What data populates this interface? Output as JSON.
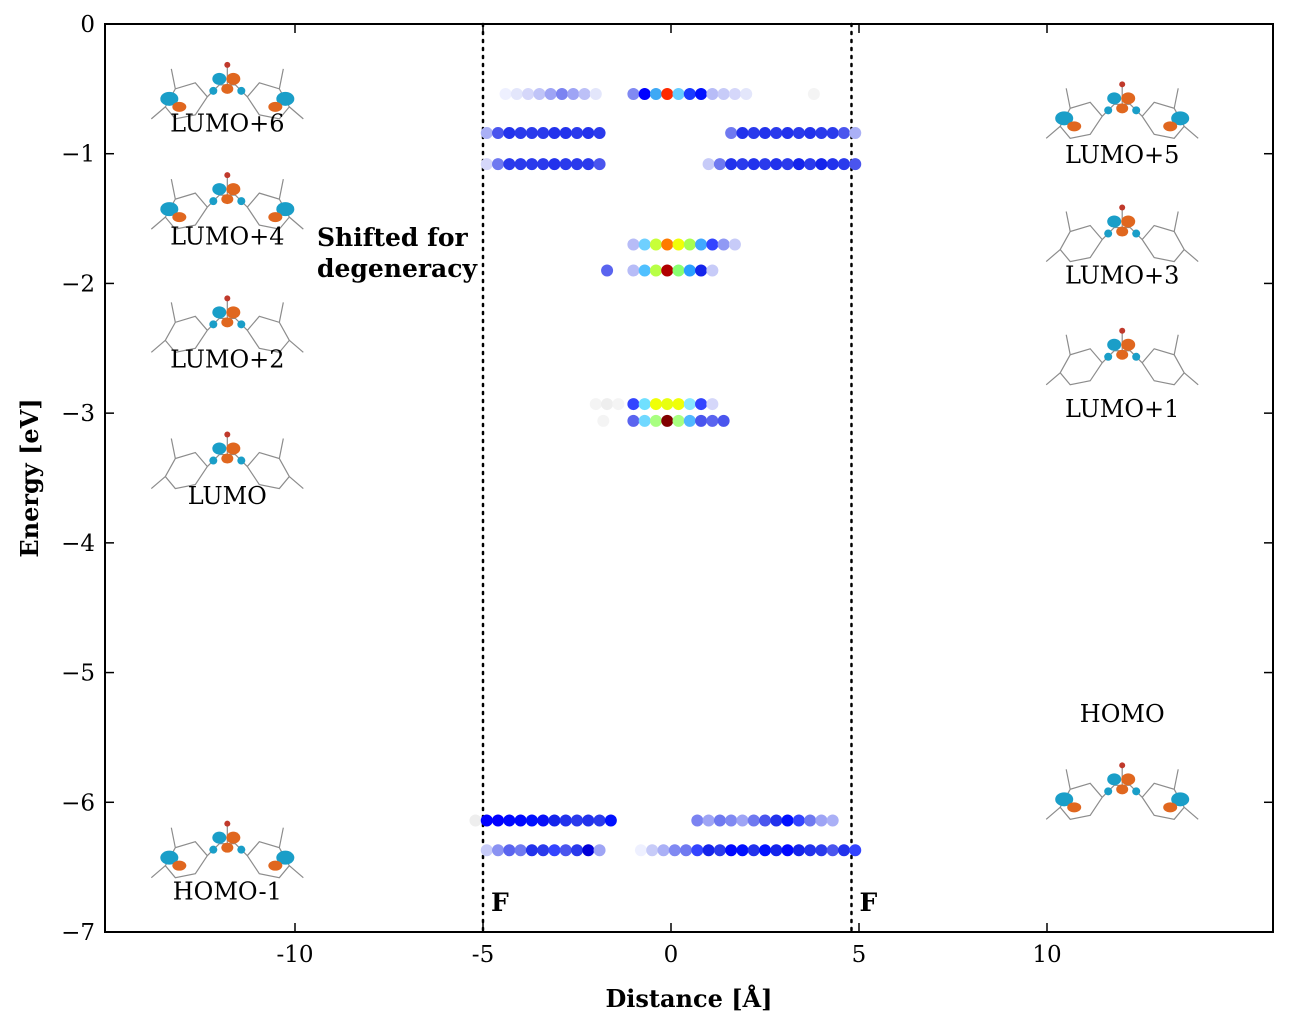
{
  "chart_data": {
    "type": "scatter",
    "xlabel": "Distance [Å]",
    "ylabel": "Energy [eV]",
    "xlim": [
      -15,
      16
    ],
    "ylim": [
      -7,
      0
    ],
    "xticks": [
      {
        "value": -10,
        "label": "-10"
      },
      {
        "value": -5,
        "label": "-5"
      },
      {
        "value": 0,
        "label": "0"
      },
      {
        "value": 5,
        "label": "5"
      },
      {
        "value": 10,
        "label": "10"
      }
    ],
    "yticks": [
      {
        "value": 0,
        "label": "0"
      },
      {
        "value": -1,
        "label": "−1"
      },
      {
        "value": -2,
        "label": "−2"
      },
      {
        "value": -3,
        "label": "−3"
      },
      {
        "value": -4,
        "label": "−4"
      },
      {
        "value": -5,
        "label": "−5"
      },
      {
        "value": -6,
        "label": "−6"
      },
      {
        "value": -7,
        "label": "−7"
      }
    ],
    "vlines": [
      {
        "x": -5.0,
        "label": "F"
      },
      {
        "x": 4.8,
        "label": "F"
      }
    ],
    "annotation": {
      "lines": [
        "Shifted for",
        "degeneracy"
      ]
    },
    "levels": [
      {
        "energy": -0.54,
        "points": [
          {
            "x": -4.4,
            "c": "#eef0ff"
          },
          {
            "x": -4.1,
            "c": "#e3e6fb"
          },
          {
            "x": -3.8,
            "c": "#d5d7fa"
          },
          {
            "x": -3.5,
            "c": "#c0c4f8"
          },
          {
            "x": -3.2,
            "c": "#9ea4f5"
          },
          {
            "x": -2.9,
            "c": "#7b83f1"
          },
          {
            "x": -2.6,
            "c": "#9ea4f5"
          },
          {
            "x": -2.3,
            "c": "#bcc0f7"
          },
          {
            "x": -2.0,
            "c": "#e3e6fb"
          },
          {
            "x": -1.0,
            "c": "#8089f2"
          },
          {
            "x": -0.7,
            "c": "#0000ff"
          },
          {
            "x": -0.4,
            "c": "#3fa9f5"
          },
          {
            "x": -0.1,
            "c": "#ff2a00"
          },
          {
            "x": 0.2,
            "c": "#66ccff"
          },
          {
            "x": 0.5,
            "c": "#1a3bff"
          },
          {
            "x": 0.8,
            "c": "#0010ff"
          },
          {
            "x": 1.1,
            "c": "#b7bcf7"
          },
          {
            "x": 1.4,
            "c": "#c7cbf8"
          },
          {
            "x": 1.7,
            "c": "#d5d7fa"
          },
          {
            "x": 2.0,
            "c": "#e3e6fb"
          },
          {
            "x": 3.8,
            "c": "#f4f4f4"
          }
        ]
      },
      {
        "energy": -0.84,
        "points": [
          {
            "x": -4.9,
            "c": "#aab0f6"
          },
          {
            "x": -4.6,
            "c": "#4a55ee"
          },
          {
            "x": -4.3,
            "c": "#2232ec"
          },
          {
            "x": -4.0,
            "c": "#2a3aec"
          },
          {
            "x": -3.7,
            "c": "#2a3aec"
          },
          {
            "x": -3.4,
            "c": "#2a3aec"
          },
          {
            "x": -3.1,
            "c": "#2232ec"
          },
          {
            "x": -2.8,
            "c": "#2232ec"
          },
          {
            "x": -2.5,
            "c": "#2a3aec"
          },
          {
            "x": -2.2,
            "c": "#2232ec"
          },
          {
            "x": -1.9,
            "c": "#2a3aec"
          },
          {
            "x": 1.6,
            "c": "#6f79f0"
          },
          {
            "x": 1.9,
            "c": "#2232ec"
          },
          {
            "x": 2.2,
            "c": "#2a3aec"
          },
          {
            "x": 2.5,
            "c": "#2232ec"
          },
          {
            "x": 2.8,
            "c": "#2a3aec"
          },
          {
            "x": 3.1,
            "c": "#2232ec"
          },
          {
            "x": 3.4,
            "c": "#2a3aec"
          },
          {
            "x": 3.7,
            "c": "#2232ec"
          },
          {
            "x": 4.0,
            "c": "#2a3aec"
          },
          {
            "x": 4.3,
            "c": "#2a3aec"
          },
          {
            "x": 4.6,
            "c": "#4a55ee"
          },
          {
            "x": 4.9,
            "c": "#aab0f6"
          }
        ]
      },
      {
        "energy": -1.08,
        "points": [
          {
            "x": -4.9,
            "c": "#d5d7fa"
          },
          {
            "x": -4.6,
            "c": "#6f79f0"
          },
          {
            "x": -4.3,
            "c": "#2a3aec"
          },
          {
            "x": -4.0,
            "c": "#2a3aec"
          },
          {
            "x": -3.7,
            "c": "#2a3aec"
          },
          {
            "x": -3.4,
            "c": "#2a3aec"
          },
          {
            "x": -3.1,
            "c": "#2232ec"
          },
          {
            "x": -2.8,
            "c": "#2a3aec"
          },
          {
            "x": -2.5,
            "c": "#2a3aec"
          },
          {
            "x": -2.2,
            "c": "#2a3aec"
          },
          {
            "x": -1.9,
            "c": "#4a55ee"
          },
          {
            "x": 1.0,
            "c": "#c7cbf8"
          },
          {
            "x": 1.3,
            "c": "#6f79f0"
          },
          {
            "x": 1.6,
            "c": "#2232ec"
          },
          {
            "x": 1.9,
            "c": "#2a3aec"
          },
          {
            "x": 2.2,
            "c": "#2232ec"
          },
          {
            "x": 2.5,
            "c": "#2a3aec"
          },
          {
            "x": 2.8,
            "c": "#2232ec"
          },
          {
            "x": 3.1,
            "c": "#2a3aec"
          },
          {
            "x": 3.4,
            "c": "#1424eb"
          },
          {
            "x": 3.7,
            "c": "#2a3aec"
          },
          {
            "x": 4.0,
            "c": "#1424eb"
          },
          {
            "x": 4.3,
            "c": "#2232ec"
          },
          {
            "x": 4.6,
            "c": "#2a3aec"
          },
          {
            "x": 4.9,
            "c": "#4a55ee"
          }
        ]
      },
      {
        "energy": -1.7,
        "points": [
          {
            "x": -1.0,
            "c": "#b7bcf7"
          },
          {
            "x": -0.7,
            "c": "#6fd0ff"
          },
          {
            "x": -0.4,
            "c": "#c8ff38"
          },
          {
            "x": -0.1,
            "c": "#ff7a00"
          },
          {
            "x": 0.2,
            "c": "#f0ff08"
          },
          {
            "x": 0.5,
            "c": "#a8ff50"
          },
          {
            "x": 0.8,
            "c": "#40a8ff"
          },
          {
            "x": 1.1,
            "c": "#3344ff"
          },
          {
            "x": 1.4,
            "c": "#9099f4"
          },
          {
            "x": 1.7,
            "c": "#c7cbf8"
          }
        ]
      },
      {
        "energy": -1.9,
        "points": [
          {
            "x": -1.7,
            "c": "#5a64ef"
          },
          {
            "x": -1.0,
            "c": "#b7bcf7"
          },
          {
            "x": -0.7,
            "c": "#50c0ff"
          },
          {
            "x": -0.4,
            "c": "#b8ff46"
          },
          {
            "x": -0.1,
            "c": "#b00000"
          },
          {
            "x": 0.2,
            "c": "#88ff70"
          },
          {
            "x": 0.5,
            "c": "#2a9fff"
          },
          {
            "x": 0.8,
            "c": "#1424eb"
          },
          {
            "x": 1.1,
            "c": "#c7cbf8"
          }
        ]
      },
      {
        "energy": -2.93,
        "points": [
          {
            "x": -2.0,
            "c": "#f4f4f4"
          },
          {
            "x": -1.7,
            "c": "#eeeeee"
          },
          {
            "x": -1.4,
            "c": "#f4f4f4"
          },
          {
            "x": -1.0,
            "c": "#3344ff"
          },
          {
            "x": -0.7,
            "c": "#70e0ff"
          },
          {
            "x": -0.4,
            "c": "#f0ff08"
          },
          {
            "x": -0.1,
            "c": "#e8ff10"
          },
          {
            "x": 0.2,
            "c": "#f0ff08"
          },
          {
            "x": 0.5,
            "c": "#88e8ff"
          },
          {
            "x": 0.8,
            "c": "#3344ff"
          },
          {
            "x": 1.1,
            "c": "#d5d7fa"
          }
        ]
      },
      {
        "energy": -3.06,
        "points": [
          {
            "x": -1.8,
            "c": "#f4f4f4"
          },
          {
            "x": -1.0,
            "c": "#5a64ef"
          },
          {
            "x": -0.7,
            "c": "#70d8ff"
          },
          {
            "x": -0.4,
            "c": "#a8ff80"
          },
          {
            "x": -0.1,
            "c": "#800000"
          },
          {
            "x": 0.2,
            "c": "#a8ff80"
          },
          {
            "x": 0.5,
            "c": "#50b8ff"
          },
          {
            "x": 0.8,
            "c": "#4a55ee"
          },
          {
            "x": 1.1,
            "c": "#5a64ef"
          },
          {
            "x": 1.4,
            "c": "#4a55ee"
          }
        ]
      },
      {
        "energy": -6.14,
        "points": [
          {
            "x": -5.2,
            "c": "#eeeeee"
          },
          {
            "x": -4.9,
            "c": "#0000ff"
          },
          {
            "x": -4.6,
            "c": "#0000ff"
          },
          {
            "x": -4.3,
            "c": "#0008ff"
          },
          {
            "x": -4.0,
            "c": "#0008ff"
          },
          {
            "x": -3.7,
            "c": "#0010ff"
          },
          {
            "x": -3.4,
            "c": "#0810f8"
          },
          {
            "x": -3.1,
            "c": "#1424eb"
          },
          {
            "x": -2.8,
            "c": "#2232ec"
          },
          {
            "x": -2.5,
            "c": "#2a3aec"
          },
          {
            "x": -2.2,
            "c": "#2232ec"
          },
          {
            "x": -1.9,
            "c": "#2a3aec"
          },
          {
            "x": -1.6,
            "c": "#0010ff"
          },
          {
            "x": 0.7,
            "c": "#7b83f1"
          },
          {
            "x": 1.0,
            "c": "#9ea4f5"
          },
          {
            "x": 1.3,
            "c": "#6f79f0"
          },
          {
            "x": 1.6,
            "c": "#8089f2"
          },
          {
            "x": 1.9,
            "c": "#9ea4f5"
          },
          {
            "x": 2.2,
            "c": "#6f79f0"
          },
          {
            "x": 2.5,
            "c": "#4a55ee"
          },
          {
            "x": 2.8,
            "c": "#2232ec"
          },
          {
            "x": 3.1,
            "c": "#0010ff"
          },
          {
            "x": 3.4,
            "c": "#3344ff"
          },
          {
            "x": 3.7,
            "c": "#6f79f0"
          },
          {
            "x": 4.0,
            "c": "#9ea4f5"
          },
          {
            "x": 4.3,
            "c": "#aab0f6"
          }
        ]
      },
      {
        "energy": -6.37,
        "points": [
          {
            "x": -4.9,
            "c": "#c7cbf8"
          },
          {
            "x": -4.6,
            "c": "#8a92f2"
          },
          {
            "x": -4.3,
            "c": "#5a64ef"
          },
          {
            "x": -4.0,
            "c": "#6f79f0"
          },
          {
            "x": -3.7,
            "c": "#2232ec"
          },
          {
            "x": -3.4,
            "c": "#2a3aec"
          },
          {
            "x": -3.1,
            "c": "#3344ff"
          },
          {
            "x": -2.8,
            "c": "#4a55ee"
          },
          {
            "x": -2.5,
            "c": "#2a3aec"
          },
          {
            "x": -2.2,
            "c": "#0000d8"
          },
          {
            "x": -1.9,
            "c": "#9ea4f5"
          },
          {
            "x": -0.8,
            "c": "#eef0ff"
          },
          {
            "x": -0.5,
            "c": "#c7cbf8"
          },
          {
            "x": -0.2,
            "c": "#aab0f6"
          },
          {
            "x": 0.1,
            "c": "#8089f2"
          },
          {
            "x": 0.4,
            "c": "#6f79f0"
          },
          {
            "x": 0.7,
            "c": "#3344ff"
          },
          {
            "x": 1.0,
            "c": "#1424eb"
          },
          {
            "x": 1.3,
            "c": "#2a3aec"
          },
          {
            "x": 1.6,
            "c": "#0008ff"
          },
          {
            "x": 1.9,
            "c": "#0010ff"
          },
          {
            "x": 2.2,
            "c": "#2232ec"
          },
          {
            "x": 2.5,
            "c": "#0010ff"
          },
          {
            "x": 2.8,
            "c": "#1424eb"
          },
          {
            "x": 3.1,
            "c": "#0008ff"
          },
          {
            "x": 3.4,
            "c": "#1424eb"
          },
          {
            "x": 3.7,
            "c": "#2232ec"
          },
          {
            "x": 4.0,
            "c": "#2a3aec"
          },
          {
            "x": 4.3,
            "c": "#4a55ee"
          },
          {
            "x": 4.6,
            "c": "#2232ec"
          },
          {
            "x": 4.9,
            "c": "#3344ff"
          }
        ]
      }
    ],
    "orbital_insets": [
      {
        "label": "LUMO+6",
        "anchor": {
          "x": -11.8,
          "y": -0.5
        },
        "label_y": -0.83
      },
      {
        "label": "LUMO+4",
        "anchor": {
          "x": -11.8,
          "y": -1.35
        },
        "label_y": -1.7
      },
      {
        "label": "LUMO+2",
        "anchor": {
          "x": -11.8,
          "y": -2.3
        },
        "label_y": -2.65
      },
      {
        "label": "LUMO",
        "anchor": {
          "x": -11.8,
          "y": -3.35
        },
        "label_y": -3.7
      },
      {
        "label": "HOMO-1",
        "anchor": {
          "x": -11.8,
          "y": -6.35
        },
        "label_y": -6.75
      },
      {
        "label": "LUMO+5",
        "anchor": {
          "x": 12.0,
          "y": -0.65
        },
        "label_y": -1.07
      },
      {
        "label": "LUMO+3",
        "anchor": {
          "x": 12.0,
          "y": -1.6
        },
        "label_y": -2.0
      },
      {
        "label": "LUMO+1",
        "anchor": {
          "x": 12.0,
          "y": -2.55
        },
        "label_y": -3.03
      },
      {
        "label": "HOMO",
        "anchor": {
          "x": 12.0,
          "y": -5.9
        },
        "label_y": -5.38
      }
    ],
    "colors": {
      "orbital_positive": "#e0671f",
      "orbital_negative": "#1a9ec8",
      "frame": "#000000"
    }
  }
}
